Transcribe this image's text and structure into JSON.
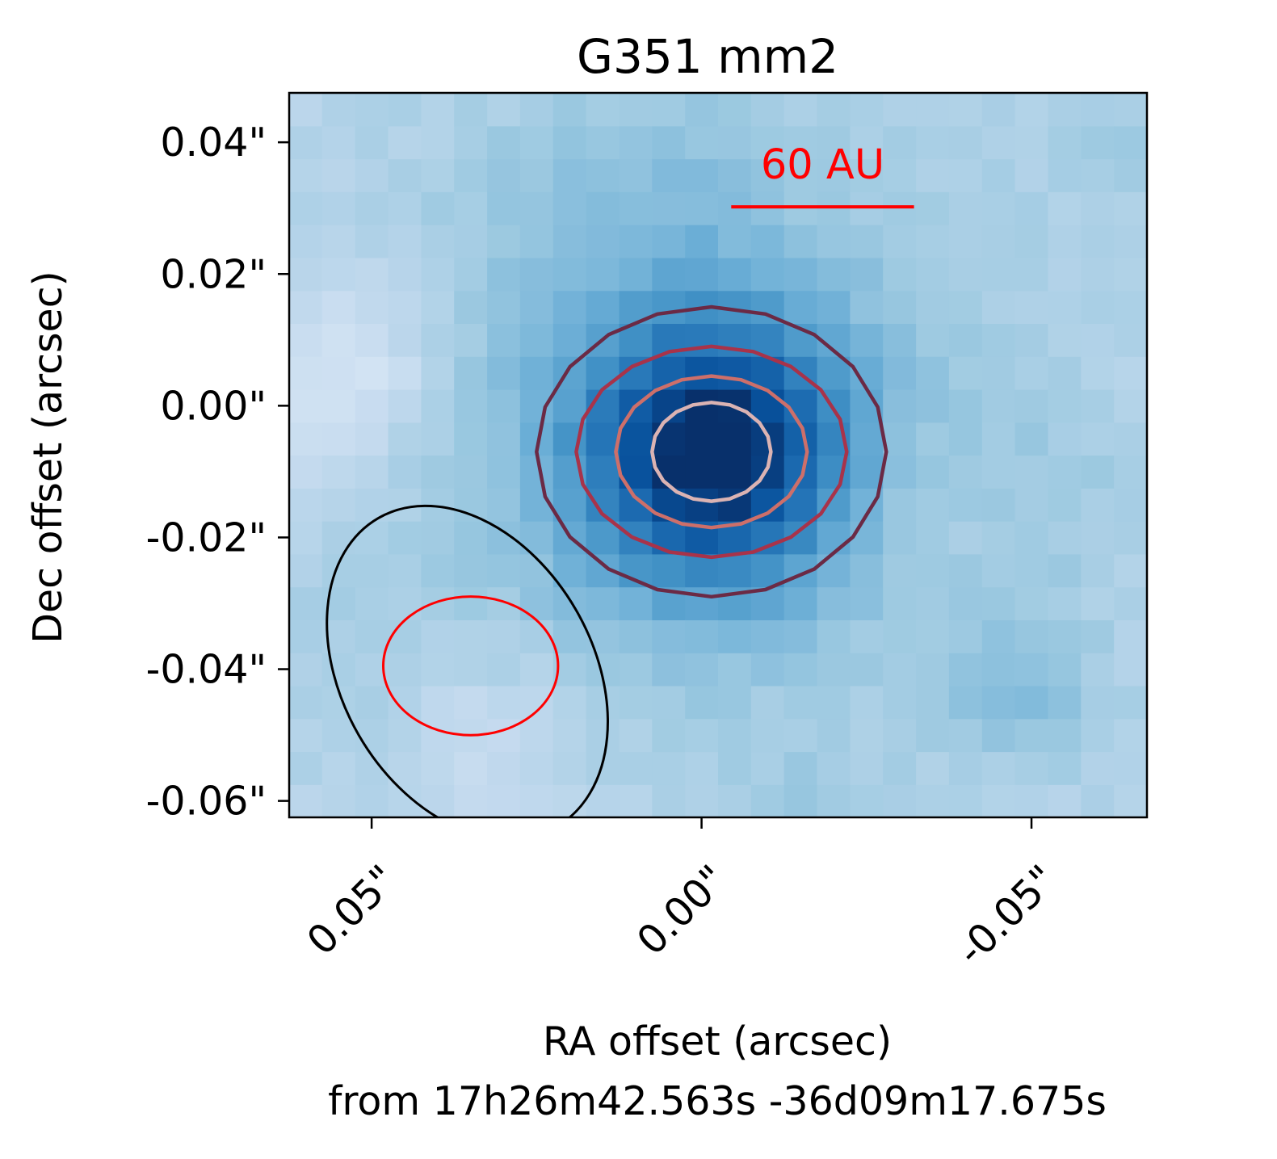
{
  "chart_data": {
    "type": "heatmap",
    "title": "G351 mm2",
    "xlabel": "RA offset (arcsec)",
    "xlabel_line2": "from 17h26m42.563s -36d09m17.675s",
    "ylabel": "Dec offset (arcsec)",
    "x_axis_direction": "reversed (east left)",
    "xlim": [
      0.0625,
      -0.0675
    ],
    "ylim": [
      -0.0625,
      0.0475
    ],
    "xticks": [
      {
        "value": 0.05,
        "label": "0.05\""
      },
      {
        "value": 0.0,
        "label": "0.00\""
      },
      {
        "value": -0.05,
        "label": "-0.05\""
      }
    ],
    "yticks": [
      {
        "value": 0.04,
        "label": "0.04\""
      },
      {
        "value": 0.02,
        "label": "0.02\""
      },
      {
        "value": 0.0,
        "label": "0.00\""
      },
      {
        "value": -0.02,
        "label": "-0.02\""
      },
      {
        "value": -0.04,
        "label": "-0.04\""
      },
      {
        "value": -0.06,
        "label": "-0.06\""
      }
    ],
    "colormap": "Blues",
    "pixel_size_arcsec": 0.005,
    "peak_position": {
      "ra_offset": -0.0015,
      "dec_offset": -0.007
    },
    "contours": [
      {
        "level_fraction": 0.2,
        "color": "#6b2a45",
        "half_width_ra": 0.0265,
        "half_height_dec": 0.022
      },
      {
        "level_fraction": 0.4,
        "color": "#a8334a",
        "half_width_ra": 0.0205,
        "half_height_dec": 0.016
      },
      {
        "level_fraction": 0.6,
        "color": "#cd6f6a",
        "half_width_ra": 0.0145,
        "half_height_dec": 0.0115
      },
      {
        "level_fraction": 0.8,
        "color": "#dbb3b3",
        "half_width_ra": 0.009,
        "half_height_dec": 0.0075
      }
    ],
    "beams": [
      {
        "name": "beam-outer",
        "color": "#000000",
        "center": [
          0.0355,
          -0.0405
        ],
        "major": 0.054,
        "minor": 0.038,
        "pa_deg": -60
      },
      {
        "name": "beam-inner",
        "color": "#ff0000",
        "center": [
          0.035,
          -0.0395
        ],
        "major": 0.0265,
        "minor": 0.021,
        "pa_deg": 0
      }
    ],
    "scalebar": {
      "label": "60 AU",
      "color": "#ff0000",
      "ra_start": -0.0045,
      "ra_end": -0.0322,
      "dec": 0.0302
    },
    "grid": false
  }
}
